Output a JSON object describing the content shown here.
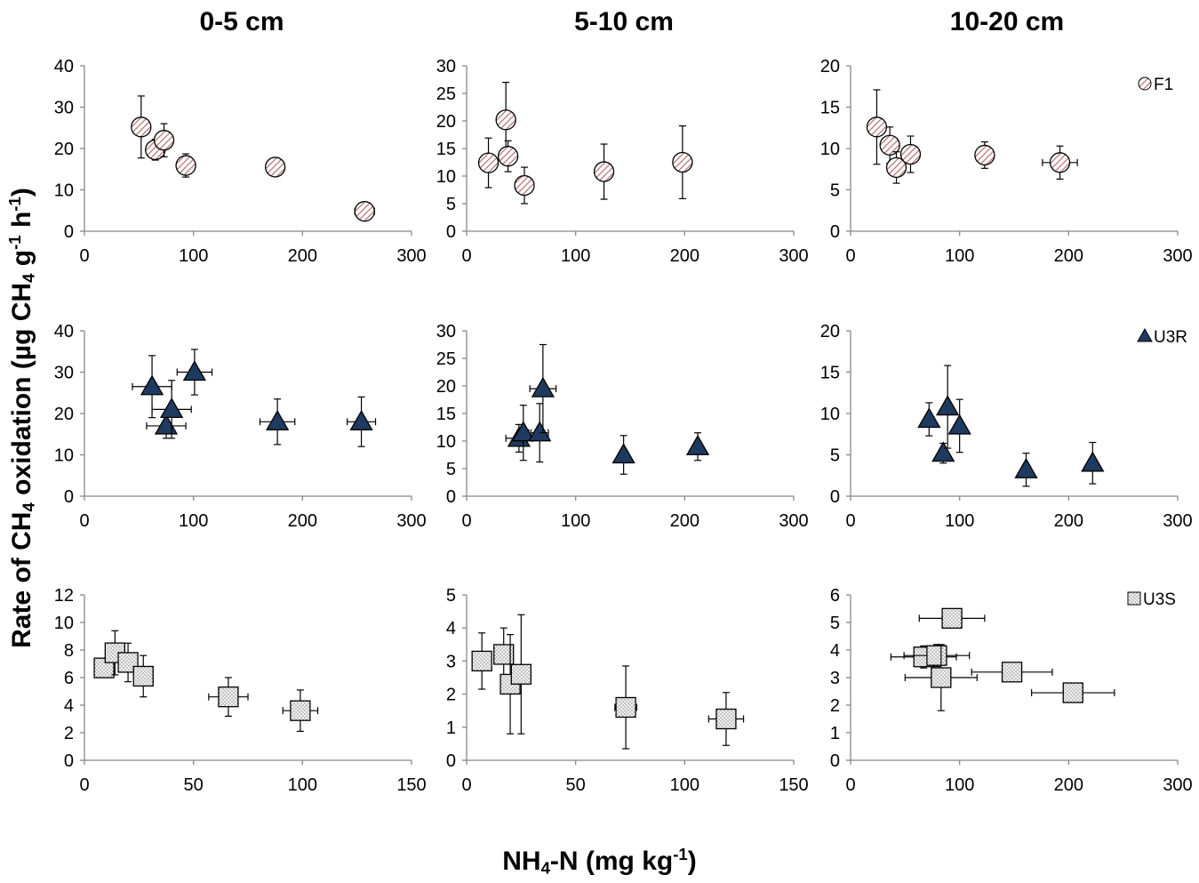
{
  "column_titles": [
    "0-5 cm",
    "5-10 cm",
    "10-20 cm"
  ],
  "y_label": {
    "pre": "Rate of CH",
    "sub1": "4",
    "mid": " oxidation (µg CH",
    "sub2": "4",
    "mid2": " g",
    "sup1": "-1",
    "mid3": " h",
    "sup2": "-1",
    "post": ")"
  },
  "x_label": {
    "pre": "NH",
    "sub": "4",
    "mid": "-N (mg kg",
    "sup": "-1",
    "post": ")"
  },
  "legend": [
    {
      "label": "F1",
      "marker": "hatched-circle",
      "color": "#c98a8a"
    },
    {
      "label": "U3R",
      "marker": "triangle",
      "color": "#1f3a5f"
    },
    {
      "label": "U3S",
      "marker": "dotted-square",
      "color": "#e6e6e6"
    }
  ],
  "chart_data": [
    {
      "type": "scatter",
      "row": "F1",
      "depth": "0-5 cm",
      "xlim": [
        0,
        300
      ],
      "ylim": [
        0,
        40
      ],
      "xticks": [
        0,
        100,
        200,
        300
      ],
      "yticks": [
        0,
        10,
        20,
        30,
        40
      ],
      "points": [
        {
          "x": 52,
          "y": 25.2,
          "yerr": 7.5,
          "xerr": 0
        },
        {
          "x": 65,
          "y": 19.7,
          "yerr": 2.5,
          "xerr": 0
        },
        {
          "x": 73,
          "y": 22.0,
          "yerr": 4.0,
          "xerr": 0
        },
        {
          "x": 93,
          "y": 15.9,
          "yerr": 2.8,
          "xerr": 0
        },
        {
          "x": 175,
          "y": 15.5,
          "yerr": 0.5,
          "xerr": 6
        },
        {
          "x": 257,
          "y": 4.8,
          "yerr": 0.5,
          "xerr": 9
        }
      ]
    },
    {
      "type": "scatter",
      "row": "F1",
      "depth": "5-10 cm",
      "xlim": [
        0,
        300
      ],
      "ylim": [
        0,
        30
      ],
      "xticks": [
        0,
        100,
        200,
        300
      ],
      "yticks": [
        0,
        5,
        10,
        15,
        20,
        25,
        30
      ],
      "points": [
        {
          "x": 20,
          "y": 12.4,
          "yerr": 4.5,
          "xerr": 0
        },
        {
          "x": 36,
          "y": 20.2,
          "yerr": 6.8,
          "xerr": 0
        },
        {
          "x": 38,
          "y": 13.6,
          "yerr": 2.8,
          "xerr": 0
        },
        {
          "x": 53,
          "y": 8.3,
          "yerr": 3.3,
          "xerr": 0
        },
        {
          "x": 126,
          "y": 10.8,
          "yerr": 5.0,
          "xerr": 0
        },
        {
          "x": 198,
          "y": 12.5,
          "yerr": 6.6,
          "xerr": 6
        }
      ]
    },
    {
      "type": "scatter",
      "row": "F1",
      "depth": "10-20 cm",
      "xlim": [
        0,
        300
      ],
      "ylim": [
        0,
        20
      ],
      "xticks": [
        0,
        100,
        200,
        300
      ],
      "yticks": [
        0,
        5,
        10,
        15,
        20
      ],
      "points": [
        {
          "x": 24,
          "y": 12.6,
          "yerr": 4.5,
          "xerr": 0
        },
        {
          "x": 36,
          "y": 10.4,
          "yerr": 2.2,
          "xerr": 0
        },
        {
          "x": 42,
          "y": 7.7,
          "yerr": 1.9,
          "xerr": 0
        },
        {
          "x": 55,
          "y": 9.3,
          "yerr": 2.2,
          "xerr": 0
        },
        {
          "x": 123,
          "y": 9.2,
          "yerr": 1.6,
          "xerr": 6
        },
        {
          "x": 192,
          "y": 8.3,
          "yerr": 2.0,
          "xerr": 16
        }
      ]
    },
    {
      "type": "scatter",
      "row": "U3R",
      "depth": "0-5 cm",
      "xlim": [
        0,
        300
      ],
      "ylim": [
        0,
        40
      ],
      "xticks": [
        0,
        100,
        200,
        300
      ],
      "yticks": [
        0,
        10,
        20,
        30,
        40
      ],
      "points": [
        {
          "x": 62,
          "y": 26.5,
          "yerr": 7.5,
          "xerr": 18
        },
        {
          "x": 75,
          "y": 17.0,
          "yerr": 3.0,
          "xerr": 18
        },
        {
          "x": 80,
          "y": 21.0,
          "yerr": 7.0,
          "xerr": 18
        },
        {
          "x": 101,
          "y": 30.0,
          "yerr": 5.5,
          "xerr": 16
        },
        {
          "x": 177,
          "y": 18.0,
          "yerr": 5.5,
          "xerr": 16
        },
        {
          "x": 254,
          "y": 18.0,
          "yerr": 6.0,
          "xerr": 13
        }
      ]
    },
    {
      "type": "scatter",
      "row": "U3R",
      "depth": "5-10 cm",
      "xlim": [
        0,
        300
      ],
      "ylim": [
        0,
        30
      ],
      "xticks": [
        0,
        100,
        200,
        300
      ],
      "yticks": [
        0,
        5,
        10,
        15,
        20,
        25,
        30
      ],
      "points": [
        {
          "x": 48,
          "y": 10.5,
          "yerr": 2.5,
          "xerr": 12
        },
        {
          "x": 52,
          "y": 11.5,
          "yerr": 5.0,
          "xerr": 5
        },
        {
          "x": 67,
          "y": 11.5,
          "yerr": 5.3,
          "xerr": 8
        },
        {
          "x": 70,
          "y": 19.5,
          "yerr": 8.0,
          "xerr": 12
        },
        {
          "x": 144,
          "y": 7.5,
          "yerr": 3.5,
          "xerr": 4
        },
        {
          "x": 212,
          "y": 9.0,
          "yerr": 2.5,
          "xerr": 4
        }
      ]
    },
    {
      "type": "scatter",
      "row": "U3R",
      "depth": "10-20 cm",
      "xlim": [
        0,
        300
      ],
      "ylim": [
        0,
        20
      ],
      "xticks": [
        0,
        100,
        200,
        300
      ],
      "yticks": [
        0,
        5,
        10,
        15,
        20
      ],
      "points": [
        {
          "x": 72,
          "y": 9.3,
          "yerr": 2.0,
          "xerr": 0
        },
        {
          "x": 85,
          "y": 5.2,
          "yerr": 1.2,
          "xerr": 0
        },
        {
          "x": 89,
          "y": 10.8,
          "yerr": 5.0,
          "xerr": 0
        },
        {
          "x": 100,
          "y": 8.5,
          "yerr": 3.2,
          "xerr": 0
        },
        {
          "x": 161,
          "y": 3.2,
          "yerr": 2.0,
          "xerr": 0
        },
        {
          "x": 222,
          "y": 4.0,
          "yerr": 2.5,
          "xerr": 0
        }
      ]
    },
    {
      "type": "scatter",
      "row": "U3S",
      "depth": "0-5 cm",
      "xlim": [
        0,
        150
      ],
      "ylim": [
        0,
        12
      ],
      "xticks": [
        0,
        50,
        100,
        150
      ],
      "yticks": [
        0,
        2,
        4,
        6,
        8,
        10,
        12
      ],
      "points": [
        {
          "x": 9,
          "y": 6.7,
          "yerr": 0.4,
          "xerr": 2
        },
        {
          "x": 14,
          "y": 7.8,
          "yerr": 1.6,
          "xerr": 3
        },
        {
          "x": 20,
          "y": 7.1,
          "yerr": 1.4,
          "xerr": 3
        },
        {
          "x": 27,
          "y": 6.1,
          "yerr": 1.5,
          "xerr": 3
        },
        {
          "x": 66,
          "y": 4.6,
          "yerr": 1.4,
          "xerr": 9
        },
        {
          "x": 99,
          "y": 3.6,
          "yerr": 1.5,
          "xerr": 8
        }
      ]
    },
    {
      "type": "scatter",
      "row": "U3S",
      "depth": "5-10 cm",
      "xlim": [
        0,
        150
      ],
      "ylim": [
        0,
        5
      ],
      "xticks": [
        0,
        50,
        100,
        150
      ],
      "yticks": [
        0,
        1,
        2,
        3,
        4,
        5
      ],
      "points": [
        {
          "x": 7,
          "y": 3.0,
          "yerr": 0.85,
          "xerr": 0
        },
        {
          "x": 17,
          "y": 3.2,
          "yerr": 0.8,
          "xerr": 0
        },
        {
          "x": 20,
          "y": 2.3,
          "yerr": 1.5,
          "xerr": 0
        },
        {
          "x": 25,
          "y": 2.6,
          "yerr": 1.8,
          "xerr": 0
        },
        {
          "x": 73,
          "y": 1.6,
          "yerr": 1.25,
          "xerr": 5
        },
        {
          "x": 119,
          "y": 1.25,
          "yerr": 0.8,
          "xerr": 8
        }
      ]
    },
    {
      "type": "scatter",
      "row": "U3S",
      "depth": "10-20 cm",
      "xlim": [
        0,
        300
      ],
      "ylim": [
        0,
        6
      ],
      "xticks": [
        0,
        100,
        200,
        300
      ],
      "yticks": [
        0,
        1,
        2,
        3,
        4,
        5,
        6
      ],
      "points": [
        {
          "x": 67,
          "y": 3.75,
          "yerr": 0.4,
          "xerr": 30
        },
        {
          "x": 79,
          "y": 3.8,
          "yerr": 0.4,
          "xerr": 30
        },
        {
          "x": 83,
          "y": 3.0,
          "yerr": 1.2,
          "xerr": 33
        },
        {
          "x": 93,
          "y": 5.15,
          "yerr": 0.2,
          "xerr": 30
        },
        {
          "x": 148,
          "y": 3.2,
          "yerr": 0.2,
          "xerr": 37
        },
        {
          "x": 204,
          "y": 2.45,
          "yerr": 0.1,
          "xerr": 38
        }
      ]
    }
  ]
}
